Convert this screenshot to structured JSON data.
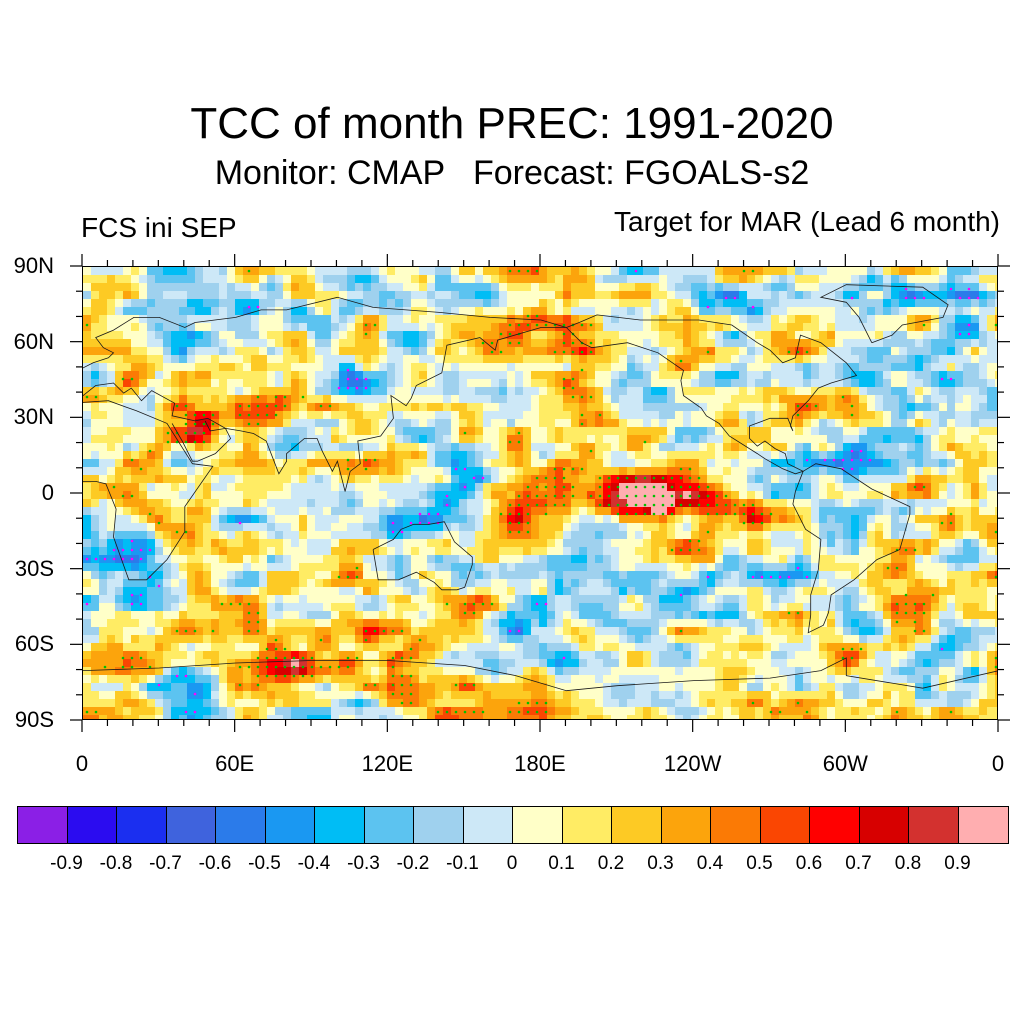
{
  "title": "TCC of month PREC: 1991-2020",
  "subtitle": "Monitor: CMAP   Forecast: FGOALS-s2",
  "left_label": "FCS ini SEP",
  "right_label": "Target for MAR (Lead 6 month)",
  "lat_labels": [
    "90N",
    "60N",
    "30N",
    "0",
    "30S",
    "60S",
    "90S"
  ],
  "lon_labels": [
    "0",
    "60E",
    "120E",
    "180E",
    "120W",
    "60W",
    "0"
  ],
  "colorbar": {
    "colors": [
      "#8b1fe6",
      "#2b0cf0",
      "#1b2ff0",
      "#3f63dd",
      "#2b7bea",
      "#1a98f2",
      "#00bdf5",
      "#5cc3f0",
      "#9fd1ee",
      "#cde8f7",
      "#ffffc8",
      "#ffec64",
      "#fdca24",
      "#fca40c",
      "#fb7a05",
      "#fa4602",
      "#ff0000",
      "#d70000",
      "#d3312f",
      "#ffaeb0"
    ],
    "labels": [
      "-0.9",
      "-0.8",
      "-0.7",
      "-0.6",
      "-0.5",
      "-0.4",
      "-0.3",
      "-0.2",
      "-0.1",
      "0",
      "0.1",
      "0.2",
      "0.3",
      "0.4",
      "0.5",
      "0.6",
      "0.7",
      "0.8",
      "0.9"
    ]
  },
  "significance_marker_colors": {
    "negative": "#ff00ff",
    "positive": "#00c000"
  }
}
